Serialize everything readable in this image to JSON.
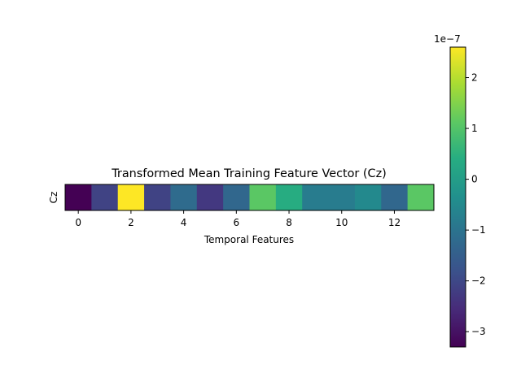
{
  "chart_data": {
    "type": "heatmap",
    "title": "Transformed Mean Training Feature Vector (Cz)",
    "xlabel": "Temporal Features",
    "ylabel": "Cz",
    "x_tick_labels": [
      "0",
      "2",
      "4",
      "6",
      "8",
      "10",
      "12"
    ],
    "x_ticks": [
      0,
      2,
      4,
      6,
      8,
      10,
      12
    ],
    "values_scale": 1e-07,
    "values": [
      -3.3,
      -2.1,
      2.6,
      -2.1,
      -1.2,
      -2.3,
      -1.3,
      1.1,
      0.4,
      -0.8,
      -0.8,
      -0.5,
      -1.3,
      1.1
    ],
    "colormap": "viridis",
    "colorbar": {
      "exponent_label": "1e−7",
      "vmin": -3.3,
      "vmax": 2.6,
      "ticks": [
        -3,
        -2,
        -1,
        0,
        1,
        2
      ],
      "tick_labels": [
        "−3",
        "−2",
        "−1",
        "0",
        "1",
        "2"
      ]
    }
  }
}
